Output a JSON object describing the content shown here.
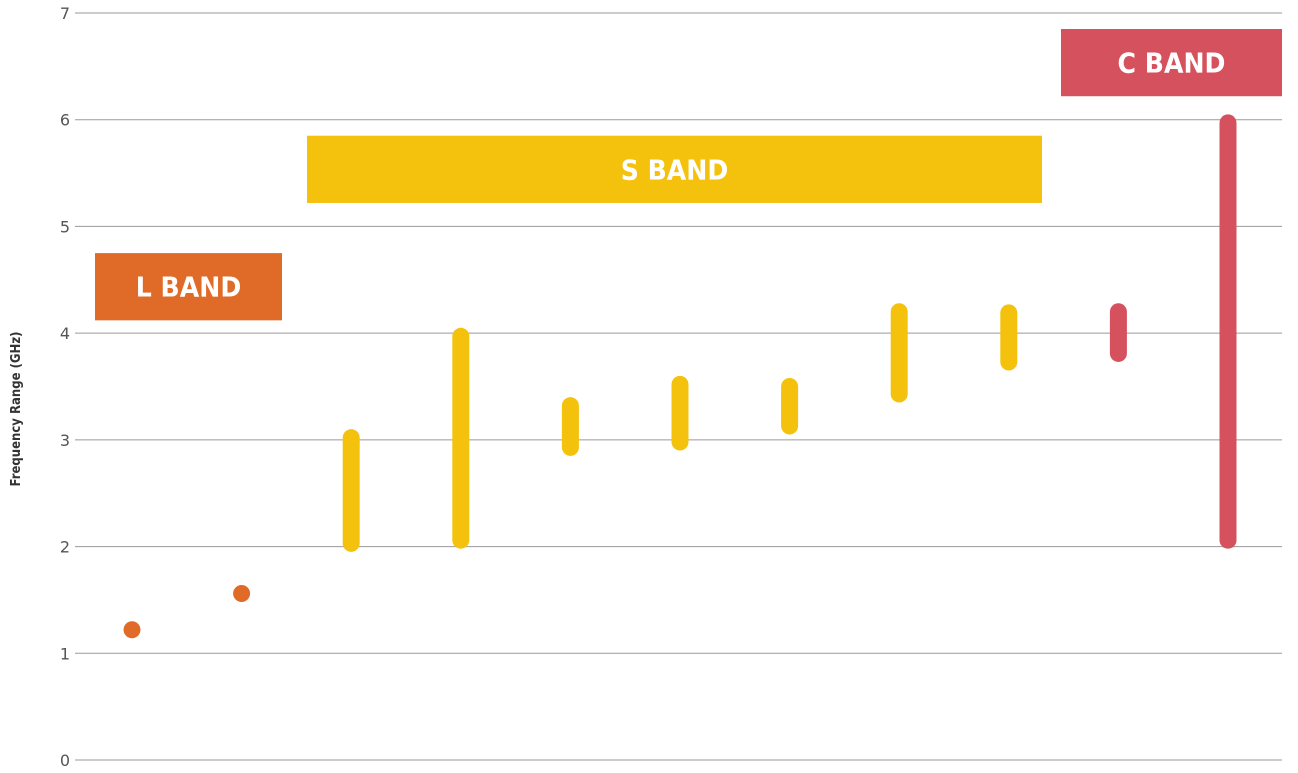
{
  "chart_data": {
    "type": "range-bar",
    "ylabel": "Frequency Range (GHz)",
    "ylim": [
      0,
      7
    ],
    "y_ticks": [
      "0",
      "1",
      "2",
      "3",
      "4",
      "5",
      "6",
      "7"
    ],
    "grid": true,
    "colors": {
      "L": "#e06a27",
      "S": "#f4c20d",
      "C": "#d6515e"
    },
    "bands": [
      {
        "label": "L BAND",
        "band": "L",
        "y_range": [
          4.12,
          4.75
        ]
      },
      {
        "label": "S BAND",
        "band": "S",
        "y_range": [
          5.22,
          5.85
        ]
      },
      {
        "label": "C BAND",
        "band": "C",
        "y_range": [
          6.22,
          6.85
        ]
      }
    ],
    "ranges": [
      {
        "band": "L",
        "low": 1.2,
        "high": 1.3
      },
      {
        "band": "L",
        "low": 1.55,
        "high": 1.64
      },
      {
        "band": "S",
        "low": 1.95,
        "high": 3.1
      },
      {
        "band": "S",
        "low": 1.98,
        "high": 4.05
      },
      {
        "band": "S",
        "low": 2.85,
        "high": 3.4
      },
      {
        "band": "S",
        "low": 2.9,
        "high": 3.6
      },
      {
        "band": "S",
        "low": 3.05,
        "high": 3.58
      },
      {
        "band": "S",
        "low": 3.35,
        "high": 4.28
      },
      {
        "band": "S",
        "low": 3.65,
        "high": 4.27
      },
      {
        "band": "C",
        "low": 3.73,
        "high": 4.28
      },
      {
        "band": "C",
        "low": 1.98,
        "high": 6.05
      }
    ]
  }
}
